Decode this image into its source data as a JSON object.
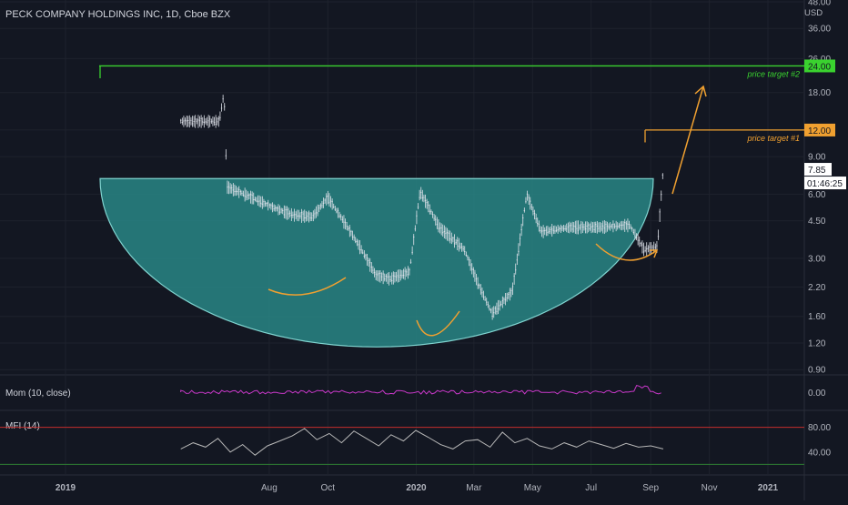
{
  "chart_data": {
    "type": "candlestick",
    "title": "PECK COMPANY HOLDINGS INC, 1D, Cboe BZX",
    "currency": "USD",
    "price_scale": "log",
    "y_ticks": [
      "48.00",
      "36.00",
      "26.00",
      "18.00",
      "12.00",
      "9.00",
      "6.00",
      "4.50",
      "3.00",
      "2.20",
      "1.60",
      "1.20",
      "0.90"
    ],
    "x_ticks": [
      "2019",
      "Aug",
      "Oct",
      "2020",
      "Mar",
      "May",
      "Jul",
      "Sep",
      "Nov",
      "2021"
    ],
    "price_labels": {
      "last": "7.85",
      "countdown": "01:46:25",
      "target1": "12.00",
      "target2": "24.00"
    },
    "annotations": {
      "target1": "price target #1",
      "target2": "price target #2"
    },
    "price_path": [
      {
        "t": "2019-05",
        "p": 13.2
      },
      {
        "t": "2019-06-10",
        "p": 13.2
      },
      {
        "t": "2019-06-15",
        "p": 18
      },
      {
        "t": "2019-06-18",
        "p": 6.5
      },
      {
        "t": "2019-07-10",
        "p": 5.9
      },
      {
        "t": "2019-08-05",
        "p": 5.2
      },
      {
        "t": "2019-08-25",
        "p": 4.8
      },
      {
        "t": "2019-09-15",
        "p": 4.7
      },
      {
        "t": "2019-10-01",
        "p": 5.8
      },
      {
        "t": "2019-10-20",
        "p": 4.3
      },
      {
        "t": "2019-11-05",
        "p": 3.3
      },
      {
        "t": "2019-11-20",
        "p": 2.5
      },
      {
        "t": "2019-12-05",
        "p": 2.4
      },
      {
        "t": "2019-12-25",
        "p": 2.6
      },
      {
        "t": "2020-01-05",
        "p": 6.2
      },
      {
        "t": "2020-01-25",
        "p": 4.2
      },
      {
        "t": "2020-02-20",
        "p": 3.3
      },
      {
        "t": "2020-03-05",
        "p": 2.3
      },
      {
        "t": "2020-03-20",
        "p": 1.65
      },
      {
        "t": "2020-04-10",
        "p": 2.1
      },
      {
        "t": "2020-04-25",
        "p": 6.0
      },
      {
        "t": "2020-05-10",
        "p": 4.0
      },
      {
        "t": "2020-06-10",
        "p": 4.2
      },
      {
        "t": "2020-07-10",
        "p": 4.2
      },
      {
        "t": "2020-08-10",
        "p": 4.3
      },
      {
        "t": "2020-08-25",
        "p": 3.3
      },
      {
        "t": "2020-09-08",
        "p": 3.4
      },
      {
        "t": "2020-09-14",
        "p": 7.85
      }
    ],
    "cup_shape": {
      "rim_price": 7.1,
      "bottom_price": 1.15
    },
    "indicators": [
      {
        "name": "Mom (10, close)",
        "value_label": "0.00",
        "ticks": [
          "0.00"
        ]
      },
      {
        "name": "MFI (14)",
        "ticks": [
          "80.00",
          "40.00"
        ],
        "upper_band": 80,
        "lower_band": 20,
        "values": [
          45,
          55,
          48,
          62,
          40,
          52,
          35,
          50,
          58,
          66,
          78,
          60,
          70,
          55,
          74,
          62,
          50,
          68,
          58,
          75,
          64,
          52,
          45,
          58,
          60,
          48,
          72,
          55,
          62,
          50,
          45,
          55,
          48,
          58,
          52,
          46,
          54,
          48,
          50,
          45
        ]
      }
    ],
    "colors": {
      "background": "#131722",
      "cup_fill": "#2a8f8e",
      "cup_edge": "#7fd3cf",
      "target1": "#f0a030",
      "target2": "#3ad22f",
      "momentum": "#c838c8",
      "mfi": "#b8b8b8",
      "mfi_band": "#c42d2d",
      "candles": "#e0e3eb"
    }
  }
}
